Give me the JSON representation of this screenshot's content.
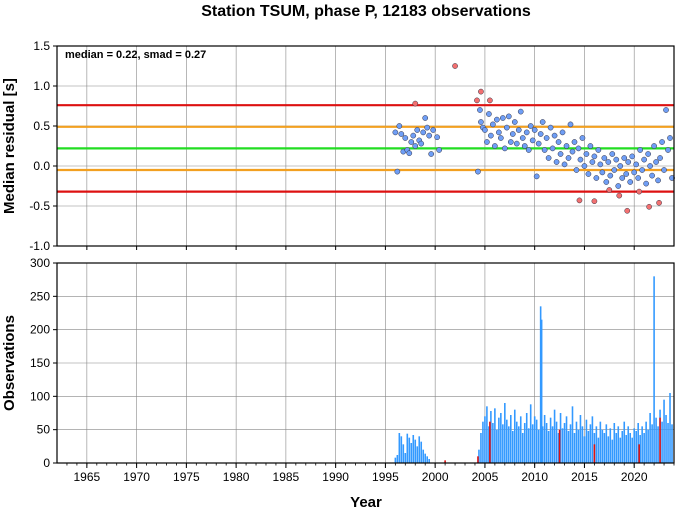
{
  "chart_data": [
    {
      "type": "scatter",
      "title": "Station TSUM, phase P, 12183 observations",
      "ylabel": "Median residual [s]",
      "annotation": "median = 0.22, smad = 0.27",
      "xlim": [
        1962,
        2024
      ],
      "ylim": [
        -1.0,
        1.5
      ],
      "yticks": [
        "-1.0",
        "-0.5",
        "0.0",
        "0.5",
        "1.0",
        "1.5"
      ],
      "grid": true,
      "reference_lines": [
        {
          "y": 0.22,
          "color": "#22dd22",
          "meaning": "median"
        },
        {
          "y": 0.49,
          "color": "#f2a020",
          "meaning": "median + smad"
        },
        {
          "y": -0.05,
          "color": "#f2a020",
          "meaning": "median - smad"
        },
        {
          "y": 0.76,
          "color": "#dd1111",
          "meaning": "median + 2 smad"
        },
        {
          "y": -0.32,
          "color": "#dd1111",
          "meaning": "median - 2 smad"
        }
      ],
      "series": [
        {
          "role": "inlier",
          "color": "#6f9ef5",
          "points": [
            [
              1996.0,
              0.42
            ],
            [
              1996.2,
              -0.07
            ],
            [
              1996.4,
              0.5
            ],
            [
              1996.6,
              0.4
            ],
            [
              1996.8,
              0.18
            ],
            [
              1997.0,
              0.35
            ],
            [
              1997.2,
              0.2
            ],
            [
              1997.4,
              0.16
            ],
            [
              1997.6,
              0.3
            ],
            [
              1997.8,
              0.38
            ],
            [
              1998.0,
              0.25
            ],
            [
              1998.2,
              0.45
            ],
            [
              1998.4,
              0.32
            ],
            [
              1998.6,
              0.28
            ],
            [
              1998.8,
              0.42
            ],
            [
              1999.0,
              0.6
            ],
            [
              1999.2,
              0.48
            ],
            [
              1999.4,
              0.38
            ],
            [
              1999.6,
              0.15
            ],
            [
              1999.8,
              0.45
            ],
            [
              2000.2,
              0.36
            ],
            [
              2000.4,
              0.2
            ],
            [
              2004.3,
              -0.07
            ],
            [
              2004.5,
              0.7
            ],
            [
              2004.6,
              0.55
            ],
            [
              2004.8,
              0.48
            ],
            [
              2005.0,
              0.45
            ],
            [
              2005.2,
              0.3
            ],
            [
              2005.4,
              0.65
            ],
            [
              2005.6,
              0.38
            ],
            [
              2005.8,
              0.52
            ],
            [
              2006.0,
              0.25
            ],
            [
              2006.2,
              0.58
            ],
            [
              2006.4,
              0.42
            ],
            [
              2006.6,
              0.35
            ],
            [
              2006.8,
              0.6
            ],
            [
              2007.0,
              0.22
            ],
            [
              2007.2,
              0.48
            ],
            [
              2007.4,
              0.62
            ],
            [
              2007.6,
              0.3
            ],
            [
              2007.8,
              0.4
            ],
            [
              2008.0,
              0.55
            ],
            [
              2008.2,
              0.28
            ],
            [
              2008.4,
              0.45
            ],
            [
              2008.6,
              0.68
            ],
            [
              2008.8,
              0.35
            ],
            [
              2009.0,
              0.25
            ],
            [
              2009.2,
              0.42
            ],
            [
              2009.4,
              0.2
            ],
            [
              2009.6,
              0.5
            ],
            [
              2009.8,
              0.32
            ],
            [
              2010.0,
              0.45
            ],
            [
              2010.2,
              -0.13
            ],
            [
              2010.4,
              0.28
            ],
            [
              2010.6,
              0.4
            ],
            [
              2010.8,
              0.55
            ],
            [
              2011.0,
              0.2
            ],
            [
              2011.2,
              0.35
            ],
            [
              2011.4,
              0.1
            ],
            [
              2011.6,
              0.48
            ],
            [
              2011.8,
              0.22
            ],
            [
              2012.0,
              0.38
            ],
            [
              2012.2,
              0.05
            ],
            [
              2012.4,
              0.3
            ],
            [
              2012.6,
              0.15
            ],
            [
              2012.8,
              0.42
            ],
            [
              2013.0,
              0.02
            ],
            [
              2013.2,
              0.25
            ],
            [
              2013.4,
              0.1
            ],
            [
              2013.6,
              0.52
            ],
            [
              2013.8,
              0.18
            ],
            [
              2014.0,
              0.3
            ],
            [
              2014.2,
              -0.05
            ],
            [
              2014.4,
              0.22
            ],
            [
              2014.6,
              0.08
            ],
            [
              2014.8,
              0.35
            ],
            [
              2015.0,
              0.0
            ],
            [
              2015.2,
              0.15
            ],
            [
              2015.4,
              -0.1
            ],
            [
              2015.6,
              0.25
            ],
            [
              2015.8,
              0.05
            ],
            [
              2016.0,
              0.12
            ],
            [
              2016.2,
              -0.15
            ],
            [
              2016.4,
              0.2
            ],
            [
              2016.6,
              0.02
            ],
            [
              2016.8,
              -0.08
            ],
            [
              2017.0,
              0.1
            ],
            [
              2017.2,
              -0.2
            ],
            [
              2017.4,
              0.05
            ],
            [
              2017.6,
              -0.12
            ],
            [
              2017.8,
              0.15
            ],
            [
              2018.0,
              -0.05
            ],
            [
              2018.2,
              0.08
            ],
            [
              2018.4,
              -0.25
            ],
            [
              2018.6,
              0.0
            ],
            [
              2018.8,
              -0.15
            ],
            [
              2019.0,
              0.1
            ],
            [
              2019.2,
              -0.1
            ],
            [
              2019.4,
              0.05
            ],
            [
              2019.6,
              -0.2
            ],
            [
              2019.8,
              0.12
            ],
            [
              2020.0,
              -0.08
            ],
            [
              2020.2,
              0.02
            ],
            [
              2020.4,
              -0.15
            ],
            [
              2020.6,
              0.2
            ],
            [
              2020.8,
              -0.05
            ],
            [
              2021.0,
              0.08
            ],
            [
              2021.2,
              -0.22
            ],
            [
              2021.4,
              0.15
            ],
            [
              2021.6,
              0.0
            ],
            [
              2021.8,
              -0.12
            ],
            [
              2022.0,
              0.25
            ],
            [
              2022.2,
              0.05
            ],
            [
              2022.4,
              -0.18
            ],
            [
              2022.6,
              0.1
            ],
            [
              2022.8,
              0.3
            ],
            [
              2023.0,
              -0.05
            ],
            [
              2023.2,
              0.7
            ],
            [
              2023.4,
              0.2
            ],
            [
              2023.6,
              0.35
            ],
            [
              2023.8,
              -0.15
            ]
          ]
        },
        {
          "role": "outlier",
          "color": "#f27070",
          "points": [
            [
              1998.0,
              0.78
            ],
            [
              2002.0,
              1.25
            ],
            [
              2004.2,
              0.82
            ],
            [
              2004.6,
              0.93
            ],
            [
              2005.5,
              0.82
            ],
            [
              2014.5,
              -0.43
            ],
            [
              2016.0,
              -0.44
            ],
            [
              2017.5,
              -0.3
            ],
            [
              2018.5,
              -0.37
            ],
            [
              2019.3,
              -0.56
            ],
            [
              2020.5,
              -0.32
            ],
            [
              2021.5,
              -0.51
            ],
            [
              2022.5,
              -0.46
            ]
          ]
        }
      ]
    },
    {
      "type": "bar",
      "ylabel": "Observations",
      "xlabel": "Year",
      "xlim": [
        1962,
        2024
      ],
      "ylim": [
        0,
        300
      ],
      "yticks": [
        "0",
        "50",
        "100",
        "150",
        "200",
        "250",
        "300"
      ],
      "xticks": [
        "1965",
        "1970",
        "1975",
        "1980",
        "1985",
        "1990",
        "1995",
        "2000",
        "2005",
        "2010",
        "2015",
        "2020"
      ],
      "grid": true,
      "series": [
        {
          "name": "",
          "color": "#3399ff",
          "x": [
            1996.0,
            1996.2,
            1996.4,
            1996.6,
            1996.8,
            1997.0,
            1997.2,
            1997.4,
            1997.6,
            1997.8,
            1998.0,
            1998.2,
            1998.4,
            1998.6,
            1998.8,
            1999.0,
            1999.2,
            1999.4,
            2004.4,
            2004.6,
            2004.8,
            2005.0,
            2005.2,
            2005.4,
            2005.6,
            2005.8,
            2006.0,
            2006.2,
            2006.4,
            2006.6,
            2006.8,
            2007.0,
            2007.2,
            2007.4,
            2007.6,
            2007.8,
            2008.0,
            2008.2,
            2008.4,
            2008.6,
            2008.8,
            2009.0,
            2009.2,
            2009.4,
            2009.6,
            2009.8,
            2010.0,
            2010.2,
            2010.4,
            2010.6,
            2010.7,
            2010.8,
            2011.0,
            2011.2,
            2011.4,
            2011.6,
            2011.8,
            2012.0,
            2012.2,
            2012.4,
            2012.6,
            2012.8,
            2013.0,
            2013.2,
            2013.4,
            2013.6,
            2013.8,
            2014.0,
            2014.2,
            2014.4,
            2014.6,
            2014.8,
            2015.0,
            2015.2,
            2015.4,
            2015.6,
            2015.8,
            2016.0,
            2016.2,
            2016.4,
            2016.6,
            2016.8,
            2017.0,
            2017.2,
            2017.4,
            2017.6,
            2017.8,
            2018.0,
            2018.2,
            2018.4,
            2018.6,
            2018.8,
            2019.0,
            2019.2,
            2019.4,
            2019.6,
            2019.8,
            2020.0,
            2020.2,
            2020.4,
            2020.6,
            2020.8,
            2021.0,
            2021.2,
            2021.4,
            2021.6,
            2021.8,
            2022.0,
            2022.2,
            2022.4,
            2022.6,
            2022.8,
            2023.0,
            2023.2,
            2023.4,
            2023.6,
            2023.8
          ],
          "values": [
            8,
            12,
            45,
            40,
            28,
            15,
            44,
            38,
            30,
            42,
            35,
            25,
            40,
            32,
            20,
            14,
            10,
            6,
            20,
            45,
            62,
            70,
            85,
            55,
            78,
            60,
            82,
            50,
            68,
            75,
            58,
            90,
            65,
            55,
            72,
            48,
            80,
            62,
            55,
            70,
            45,
            60,
            75,
            52,
            88,
            58,
            70,
            65,
            50,
            235,
            215,
            55,
            72,
            60,
            48,
            68,
            55,
            80,
            62,
            45,
            75,
            52,
            60,
            70,
            48,
            58,
            85,
            45,
            62,
            50,
            72,
            55,
            40,
            65,
            48,
            58,
            70,
            45,
            55,
            38,
            62,
            50,
            45,
            58,
            40,
            52,
            35,
            60,
            45,
            55,
            38,
            48,
            62,
            42,
            55,
            45,
            38,
            52,
            48,
            60,
            42,
            55,
            45,
            62,
            50,
            75,
            58,
            280,
            68,
            55,
            80,
            62,
            95,
            72,
            60,
            105,
            58
          ]
        },
        {
          "name": "",
          "color": "#dd1111",
          "x": [
            2001.0,
            2004.3,
            2005.5,
            2012.5,
            2016.0,
            2020.5,
            2022.6
          ],
          "values": [
            4,
            10,
            62,
            50,
            28,
            28,
            68
          ]
        }
      ]
    }
  ]
}
